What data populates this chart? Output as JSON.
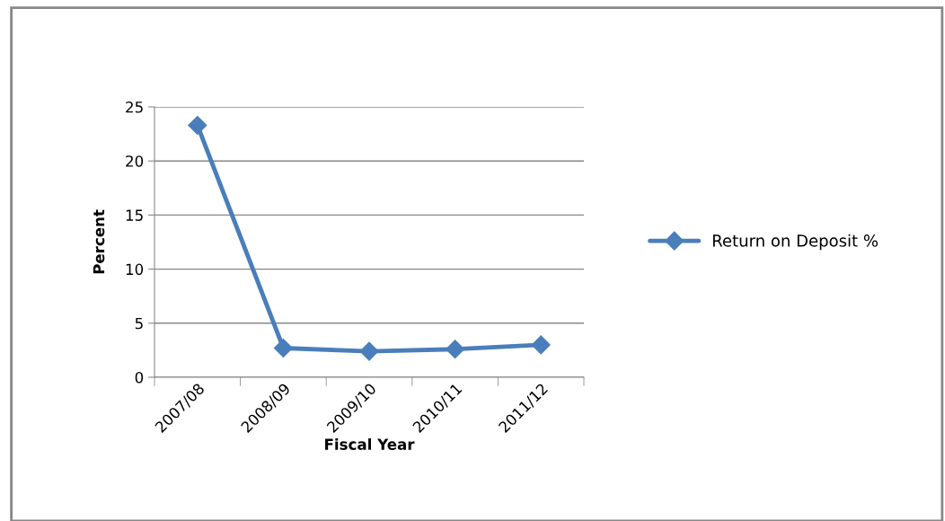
{
  "chart_data": {
    "type": "line",
    "xlabel": "Fiscal Year",
    "ylabel": "Percent",
    "categories": [
      "2007/08",
      "2008/09",
      "2009/10",
      "2010/11",
      "2011/12"
    ],
    "series": [
      {
        "name": "Return on Deposit %",
        "color": "#4a7ebb",
        "values": [
          23.3,
          2.7,
          2.4,
          2.6,
          3.0
        ]
      }
    ],
    "ylim": [
      0,
      25
    ],
    "yticks": [
      0,
      5,
      10,
      15,
      20,
      25
    ],
    "grid": "y",
    "legend": "right",
    "marker": "diamond",
    "line_style": "solid"
  }
}
